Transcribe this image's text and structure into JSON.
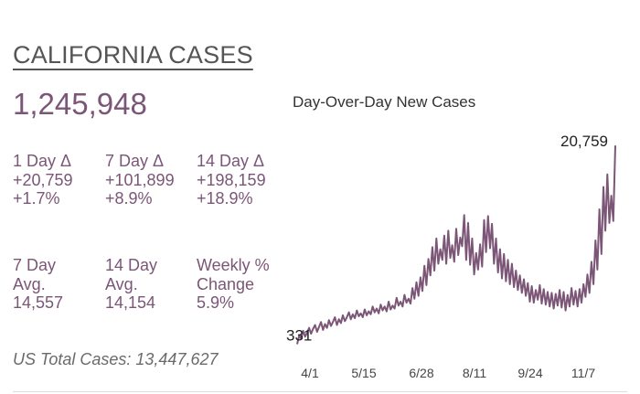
{
  "header": {
    "title": "CALIFORNIA CASES",
    "total": "1,245,948"
  },
  "stats": [
    {
      "label": "1 Day Δ",
      "value": "+20,759",
      "percent": "+1.7%"
    },
    {
      "label": "7 Day Δ",
      "value": "+101,899",
      "percent": "+8.9%"
    },
    {
      "label": "14 Day Δ",
      "value": "+198,159",
      "percent": "+18.9%"
    }
  ],
  "averages": [
    {
      "label_line1": "7 Day",
      "label_line2": "Avg.",
      "value": "14,557"
    },
    {
      "label_line1": "14 Day",
      "label_line2": "Avg.",
      "value": "14,154"
    },
    {
      "label_line1": "Weekly %",
      "label_line2": "Change",
      "value": "5.9%"
    }
  ],
  "footer": {
    "us_total": "US Total Cases: 13,447,627"
  },
  "colors": {
    "accent": "#7b5677",
    "title": "#555555",
    "muted": "#6a6a6a"
  },
  "chart_data": {
    "type": "line",
    "title": "Day-Over-Day New Cases",
    "xlabel": "",
    "ylabel": "",
    "x_tick_labels": [
      "4/1",
      "5/15",
      "6/28",
      "8/11",
      "9/24",
      "11/7"
    ],
    "ylim": [
      0,
      22000
    ],
    "grid": false,
    "annotations": [
      {
        "text": "331",
        "point": "first"
      },
      {
        "text": "20,759",
        "point": "last"
      }
    ],
    "series": [
      {
        "values": [
          331,
          1200,
          900,
          1700,
          1100,
          1500,
          2000,
          1400,
          1900,
          2300,
          1600,
          2100,
          2600,
          1800,
          2400,
          2000,
          2800,
          2200,
          2600,
          3100,
          2300,
          2900,
          2500,
          3300,
          2700,
          3100,
          3600,
          2900,
          3400,
          3000,
          3800,
          3200,
          3500,
          3100,
          3900,
          3300,
          3700,
          3400,
          4200,
          3600,
          4000,
          3500,
          4400,
          3800,
          4200,
          3700,
          4700,
          3900,
          4300,
          4000,
          5100,
          4300,
          4700,
          4200,
          5400,
          4600,
          5000,
          4500,
          6100,
          5000,
          6700,
          5300,
          7200,
          5800,
          8400,
          6400,
          9100,
          7400,
          10300,
          7900,
          11200,
          8600,
          10100,
          9000,
          11500,
          8600,
          12000,
          9200,
          10500,
          8800,
          12200,
          9500,
          11300,
          10400,
          13600,
          9000,
          12800,
          8500,
          11200,
          7500,
          9700,
          8000,
          10600,
          8300,
          13100,
          9800,
          13500,
          10200,
          12700,
          8600,
          11200,
          7700,
          10100,
          7100,
          9600,
          6800,
          9000,
          6500,
          8600,
          6200,
          7900,
          5900,
          7400,
          5600,
          7000,
          5300,
          6600,
          4700,
          6300,
          4600,
          5900,
          4900,
          6400,
          4500,
          6000,
          4400,
          5700,
          4200,
          5600,
          4000,
          5500,
          4300,
          5900,
          4100,
          5700,
          3800,
          5400,
          4200,
          6100,
          4400,
          5800,
          4200,
          6000,
          4600,
          6500,
          5200,
          7500,
          5600,
          8800,
          6500,
          11000,
          8000,
          14200,
          9600,
          16500,
          12000,
          17800,
          12800,
          15600,
          13000,
          20759
        ]
      }
    ]
  }
}
